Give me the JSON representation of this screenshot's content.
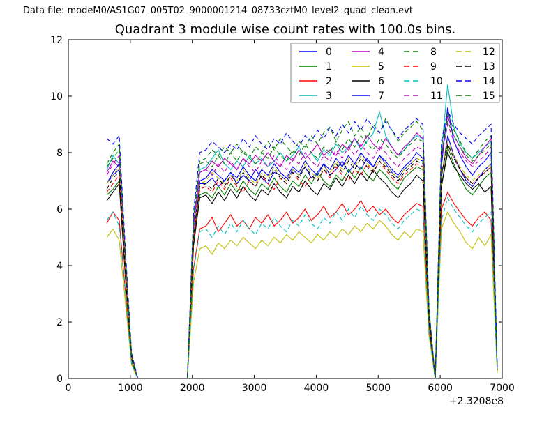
{
  "header": {
    "data_file": "Data file: modeM0/AS1G07_005T02_9000001214_08733cztM0_level2_quad_clean.evt"
  },
  "chart_data": {
    "type": "line",
    "title": "Quadrant 3 module wise count rates with 100.0s bins.",
    "xlabel": "",
    "ylabel": "",
    "grid": false,
    "legend_position": "upper right",
    "legend_columns": 4,
    "x_axis": {
      "lim": [
        0,
        7000
      ],
      "ticks": [
        0,
        1000,
        2000,
        3000,
        4000,
        5000,
        6000,
        7000
      ],
      "offset_text": "+2.3208e8"
    },
    "y_axis": {
      "lim": [
        0,
        12
      ],
      "ticks": [
        0,
        2,
        4,
        6,
        8,
        10,
        12
      ]
    },
    "x": [
      620,
      720,
      820,
      920,
      1020,
      1120,
      1220,
      1320,
      1420,
      1520,
      1620,
      1720,
      1820,
      1920,
      2020,
      2120,
      2220,
      2320,
      2420,
      2520,
      2620,
      2720,
      2820,
      2920,
      3020,
      3120,
      3220,
      3320,
      3420,
      3520,
      3620,
      3720,
      3820,
      3920,
      4020,
      4120,
      4220,
      4320,
      4420,
      4520,
      4620,
      4720,
      4820,
      4920,
      5020,
      5120,
      5220,
      5320,
      5420,
      5520,
      5620,
      5720,
      5820,
      5920,
      6020,
      6120,
      6220,
      6320,
      6420,
      6520,
      6620,
      6720,
      6820,
      6920
    ],
    "series": [
      {
        "name": "0",
        "color": "#0000ff",
        "linestyle": "solid",
        "y": [
          6.9,
          7.2,
          7.4,
          3.9,
          0.7,
          0,
          0,
          0,
          0,
          0,
          0,
          0,
          0,
          0,
          5.1,
          6.9,
          6.9,
          7.1,
          6.8,
          7.0,
          7.3,
          6.9,
          7.2,
          7.0,
          7.4,
          7.1,
          6.9,
          7.3,
          7.2,
          7.0,
          7.4,
          7.2,
          7.5,
          7.1,
          7.3,
          7.6,
          7.2,
          7.4,
          7.7,
          7.3,
          7.6,
          7.4,
          7.8,
          7.5,
          7.9,
          7.6,
          7.3,
          7.1,
          7.4,
          7.6,
          7.8,
          7.7,
          2.1,
          0,
          7.1,
          8.6,
          7.9,
          7.4,
          7.0,
          6.8,
          7.1,
          7.4,
          7.6,
          0.3
        ]
      },
      {
        "name": "1",
        "color": "#007f00",
        "linestyle": "solid",
        "y": [
          6.5,
          6.7,
          7.0,
          3.7,
          0.6,
          0,
          0,
          0,
          0,
          0,
          0,
          0,
          0,
          0,
          4.8,
          6.5,
          6.6,
          6.4,
          6.8,
          6.5,
          6.9,
          6.6,
          7.0,
          6.7,
          6.5,
          6.9,
          6.7,
          7.1,
          6.8,
          6.6,
          7.0,
          6.8,
          7.2,
          6.9,
          7.3,
          7.0,
          6.8,
          7.2,
          7.0,
          7.4,
          7.1,
          7.5,
          7.2,
          7.0,
          7.4,
          7.2,
          6.9,
          6.7,
          7.1,
          7.3,
          7.5,
          7.4,
          2.0,
          0,
          6.8,
          8.2,
          7.6,
          7.1,
          6.7,
          6.5,
          6.8,
          7.1,
          7.3,
          0.3
        ]
      },
      {
        "name": "2",
        "color": "#ff0000",
        "linestyle": "solid",
        "y": [
          5.5,
          5.9,
          5.6,
          3.1,
          0.5,
          0,
          0,
          0,
          0,
          0,
          0,
          0,
          0,
          0,
          3.9,
          5.3,
          5.4,
          5.7,
          5.2,
          5.5,
          5.8,
          5.4,
          5.6,
          5.3,
          5.7,
          5.5,
          5.8,
          5.4,
          5.6,
          5.9,
          5.5,
          5.7,
          6.0,
          5.6,
          5.8,
          6.1,
          5.7,
          5.9,
          6.2,
          5.8,
          6.0,
          6.3,
          5.9,
          6.1,
          5.8,
          6.0,
          5.7,
          5.5,
          5.8,
          6.0,
          6.2,
          6.1,
          1.7,
          0,
          6.0,
          6.6,
          6.2,
          5.9,
          5.6,
          5.4,
          5.7,
          5.9,
          5.6,
          0.25
        ]
      },
      {
        "name": "3",
        "color": "#00bfbf",
        "linestyle": "solid",
        "y": [
          7.4,
          7.9,
          7.6,
          4.2,
          0.8,
          0,
          0,
          0,
          0,
          0,
          0,
          0,
          0,
          0,
          5.5,
          7.4,
          7.5,
          7.8,
          8.1,
          7.6,
          7.4,
          7.7,
          7.5,
          7.9,
          7.6,
          7.8,
          7.5,
          7.7,
          8.0,
          7.7,
          7.9,
          8.2,
          7.8,
          8.0,
          7.7,
          8.1,
          7.9,
          8.3,
          8.0,
          8.2,
          8.5,
          8.1,
          8.4,
          8.7,
          9.45,
          8.6,
          8.2,
          7.9,
          8.1,
          8.4,
          8.6,
          8.5,
          2.4,
          0,
          8.0,
          10.42,
          8.9,
          8.3,
          8.0,
          7.8,
          8.0,
          8.2,
          8.4,
          0.35
        ]
      },
      {
        "name": "4",
        "color": "#bf00bf",
        "linestyle": "solid",
        "y": [
          7.3,
          7.7,
          7.5,
          4.2,
          0.8,
          0,
          0,
          0,
          0,
          0,
          0,
          0,
          0,
          0,
          5.4,
          7.3,
          7.4,
          7.7,
          7.5,
          7.8,
          7.6,
          7.4,
          7.8,
          7.6,
          7.9,
          7.7,
          8.0,
          7.7,
          7.5,
          7.9,
          7.7,
          8.1,
          7.8,
          8.0,
          8.3,
          7.9,
          8.1,
          7.9,
          8.3,
          8.1,
          8.5,
          8.2,
          8.6,
          8.3,
          8.1,
          8.5,
          8.2,
          7.9,
          8.2,
          8.4,
          8.7,
          8.5,
          2.3,
          0,
          7.9,
          9.3,
          8.6,
          8.2,
          7.8,
          7.6,
          7.9,
          8.2,
          8.5,
          0.3
        ]
      },
      {
        "name": "5",
        "color": "#bfbf00",
        "linestyle": "solid",
        "y": [
          5.0,
          5.3,
          4.9,
          2.7,
          0.5,
          0,
          0,
          0,
          0,
          0,
          0,
          0,
          0,
          0,
          3.4,
          4.6,
          4.7,
          4.4,
          4.8,
          4.6,
          4.9,
          4.7,
          5.0,
          4.8,
          4.6,
          4.9,
          4.7,
          5.0,
          4.8,
          5.1,
          4.9,
          5.2,
          5.0,
          4.8,
          5.1,
          4.9,
          5.2,
          5.0,
          5.3,
          5.1,
          5.4,
          5.2,
          5.5,
          5.3,
          5.6,
          5.4,
          5.1,
          4.9,
          5.2,
          5.0,
          5.3,
          5.2,
          1.5,
          0,
          5.3,
          5.9,
          5.5,
          5.2,
          4.8,
          4.6,
          5.0,
          4.7,
          5.1,
          0.2
        ]
      },
      {
        "name": "6",
        "color": "#000000",
        "linestyle": "solid",
        "y": [
          6.3,
          6.6,
          6.9,
          3.6,
          0.7,
          0,
          0,
          0,
          0,
          0,
          0,
          0,
          0,
          0,
          4.7,
          6.4,
          6.5,
          6.2,
          6.6,
          6.3,
          6.7,
          6.4,
          6.8,
          6.5,
          6.3,
          6.7,
          6.5,
          6.9,
          6.6,
          6.4,
          6.8,
          6.6,
          7.0,
          6.7,
          6.5,
          6.9,
          6.7,
          7.1,
          6.8,
          7.2,
          6.9,
          7.3,
          7.0,
          7.4,
          7.1,
          6.9,
          6.6,
          6.4,
          6.7,
          6.9,
          7.2,
          7.0,
          2.0,
          0,
          6.8,
          8.0,
          7.5,
          7.2,
          6.9,
          6.7,
          6.9,
          6.6,
          6.8,
          0.3
        ]
      },
      {
        "name": "7",
        "color": "#0000ff",
        "linestyle": "solid",
        "y": [
          6.9,
          7.3,
          7.6,
          4.0,
          0.7,
          0,
          0,
          0,
          0,
          0,
          0,
          0,
          0,
          0,
          5.1,
          7.0,
          7.1,
          7.4,
          7.2,
          7.0,
          7.3,
          7.1,
          7.5,
          7.2,
          7.0,
          7.4,
          7.2,
          7.6,
          7.3,
          7.1,
          7.5,
          7.3,
          7.7,
          7.4,
          7.2,
          7.6,
          7.4,
          7.8,
          7.5,
          7.9,
          7.6,
          8.0,
          7.7,
          7.5,
          7.9,
          7.7,
          7.4,
          7.2,
          7.5,
          7.7,
          8.0,
          7.8,
          2.2,
          0,
          7.5,
          9.6,
          8.4,
          7.9,
          7.5,
          7.2,
          7.5,
          7.7,
          8.0,
          0.3
        ]
      },
      {
        "name": "8",
        "color": "#007f00",
        "linestyle": "dashed",
        "y": [
          7.6,
          8.0,
          8.3,
          4.4,
          0.8,
          0,
          0,
          0,
          0,
          0,
          0,
          0,
          0,
          0,
          5.7,
          7.7,
          7.8,
          8.1,
          7.9,
          8.2,
          8.0,
          8.3,
          8.0,
          7.8,
          8.2,
          8.0,
          8.4,
          8.1,
          8.5,
          8.2,
          8.0,
          8.4,
          8.2,
          8.6,
          8.3,
          8.7,
          8.9,
          8.4,
          8.8,
          9.1,
          8.6,
          8.9,
          8.5,
          9.0,
          8.7,
          9.2,
          8.8,
          8.4,
          8.7,
          8.9,
          9.1,
          8.8,
          2.4,
          0,
          8.2,
          9.4,
          8.8,
          8.4,
          8.0,
          7.8,
          8.1,
          8.4,
          8.6,
          0.35
        ]
      },
      {
        "name": "9",
        "color": "#ff0000",
        "linestyle": "dashed",
        "y": [
          6.6,
          6.9,
          7.2,
          3.8,
          0.7,
          0,
          0,
          0,
          0,
          0,
          0,
          0,
          0,
          0,
          4.9,
          6.7,
          6.8,
          6.6,
          7.0,
          6.7,
          7.1,
          6.8,
          6.6,
          7.0,
          6.8,
          7.2,
          6.9,
          6.7,
          7.1,
          6.9,
          7.3,
          7.0,
          6.8,
          7.2,
          7.0,
          7.4,
          7.1,
          7.5,
          7.2,
          7.0,
          7.4,
          7.2,
          7.6,
          7.3,
          7.7,
          7.4,
          7.1,
          6.9,
          7.2,
          7.4,
          7.6,
          7.5,
          2.1,
          0,
          7.2,
          8.3,
          7.8,
          7.4,
          7.1,
          6.9,
          7.1,
          7.3,
          7.5,
          0.3
        ]
      },
      {
        "name": "10",
        "color": "#00bfbf",
        "linestyle": "dashed",
        "y": [
          5.6,
          5.9,
          5.4,
          3.0,
          0.5,
          0,
          0,
          0,
          0,
          0,
          0,
          0,
          0,
          0,
          3.8,
          5.2,
          5.3,
          5.0,
          5.4,
          5.1,
          5.5,
          5.2,
          5.6,
          5.3,
          5.1,
          5.5,
          5.3,
          5.7,
          5.4,
          5.2,
          5.6,
          5.4,
          5.8,
          5.5,
          5.3,
          5.7,
          5.5,
          5.9,
          5.6,
          6.0,
          5.7,
          6.1,
          5.8,
          5.6,
          6.0,
          5.8,
          5.5,
          5.3,
          5.6,
          5.8,
          6.0,
          5.9,
          1.6,
          0,
          5.6,
          6.4,
          6.0,
          5.7,
          5.4,
          5.2,
          5.5,
          5.7,
          5.9,
          0.25
        ]
      },
      {
        "name": "11",
        "color": "#bf00bf",
        "linestyle": "dashed",
        "y": [
          7.2,
          7.6,
          7.9,
          4.2,
          0.8,
          0,
          0,
          0,
          0,
          0,
          0,
          0,
          0,
          0,
          5.4,
          7.3,
          7.4,
          7.2,
          7.6,
          7.3,
          7.7,
          7.4,
          7.8,
          7.5,
          7.3,
          7.7,
          7.5,
          7.9,
          7.6,
          7.4,
          7.8,
          7.6,
          8.0,
          7.7,
          7.5,
          7.9,
          7.7,
          8.1,
          7.8,
          8.2,
          7.9,
          8.3,
          8.0,
          7.8,
          8.2,
          8.0,
          7.7,
          7.5,
          7.8,
          8.0,
          8.2,
          8.1,
          2.3,
          0,
          7.8,
          9.0,
          8.4,
          8.0,
          7.7,
          7.5,
          7.7,
          7.9,
          8.2,
          0.3
        ]
      },
      {
        "name": "12",
        "color": "#bfbf00",
        "linestyle": "dashed",
        "y": [
          6.9,
          7.2,
          7.5,
          3.9,
          0.7,
          0,
          0,
          0,
          0,
          0,
          0,
          0,
          0,
          0,
          5.1,
          6.9,
          7.0,
          7.3,
          7.1,
          6.9,
          7.2,
          7.0,
          7.4,
          7.1,
          6.9,
          7.3,
          7.1,
          7.5,
          7.2,
          7.0,
          7.4,
          7.2,
          7.6,
          7.3,
          7.1,
          7.5,
          7.3,
          7.7,
          7.4,
          7.8,
          7.5,
          7.9,
          7.6,
          7.4,
          7.8,
          7.6,
          7.3,
          7.1,
          7.4,
          7.6,
          7.8,
          7.7,
          2.2,
          0,
          7.3,
          8.4,
          7.9,
          7.5,
          7.2,
          7.0,
          7.2,
          7.4,
          7.6,
          0.3
        ]
      },
      {
        "name": "13",
        "color": "#000000",
        "linestyle": "dashed",
        "y": [
          6.7,
          7.1,
          7.3,
          3.8,
          0.7,
          0,
          0,
          0,
          0,
          0,
          0,
          0,
          0,
          0,
          5.0,
          6.8,
          6.9,
          6.7,
          7.1,
          6.8,
          7.2,
          6.9,
          7.3,
          7.0,
          6.8,
          7.2,
          7.0,
          7.4,
          7.1,
          6.9,
          7.3,
          7.1,
          7.5,
          7.2,
          7.0,
          7.4,
          7.2,
          7.6,
          7.3,
          7.7,
          7.4,
          7.8,
          7.5,
          7.3,
          7.7,
          7.5,
          7.2,
          7.0,
          7.3,
          7.5,
          7.7,
          7.6,
          2.1,
          0,
          7.2,
          8.3,
          7.8,
          7.4,
          7.1,
          6.9,
          7.1,
          7.3,
          7.5,
          0.3
        ]
      },
      {
        "name": "14",
        "color": "#0000ff",
        "linestyle": "dashed",
        "y": [
          8.5,
          8.3,
          8.6,
          4.6,
          0.9,
          0,
          0,
          0,
          0,
          0,
          0,
          0,
          0,
          0,
          5.9,
          8.0,
          8.1,
          8.4,
          8.2,
          8.0,
          8.3,
          8.1,
          8.5,
          8.2,
          8.6,
          8.3,
          8.1,
          8.5,
          8.3,
          8.7,
          8.4,
          8.2,
          8.6,
          8.4,
          8.8,
          8.5,
          8.9,
          8.6,
          9.0,
          8.7,
          9.1,
          8.8,
          9.2,
          8.9,
          8.7,
          9.1,
          8.8,
          8.5,
          8.8,
          9.0,
          9.2,
          9.0,
          2.5,
          0,
          8.4,
          9.5,
          9.0,
          8.7,
          8.5,
          8.3,
          8.6,
          8.8,
          9.0,
          0.4
        ]
      },
      {
        "name": "15",
        "color": "#007f00",
        "linestyle": "dashed",
        "y": [
          7.5,
          7.8,
          8.1,
          4.3,
          0.8,
          0,
          0,
          0,
          0,
          0,
          0,
          0,
          0,
          0,
          5.6,
          7.6,
          7.7,
          7.5,
          7.9,
          7.6,
          8.0,
          7.7,
          8.1,
          7.8,
          7.6,
          8.0,
          7.8,
          8.2,
          7.9,
          7.7,
          8.1,
          7.9,
          8.3,
          8.0,
          7.8,
          8.2,
          8.0,
          8.4,
          8.1,
          8.5,
          8.2,
          8.6,
          8.3,
          8.1,
          8.5,
          8.3,
          8.0,
          7.8,
          8.1,
          8.3,
          8.5,
          8.4,
          2.4,
          0,
          7.9,
          9.1,
          8.6,
          8.2,
          7.9,
          7.7,
          7.9,
          8.1,
          8.3,
          0.35
        ]
      }
    ]
  }
}
